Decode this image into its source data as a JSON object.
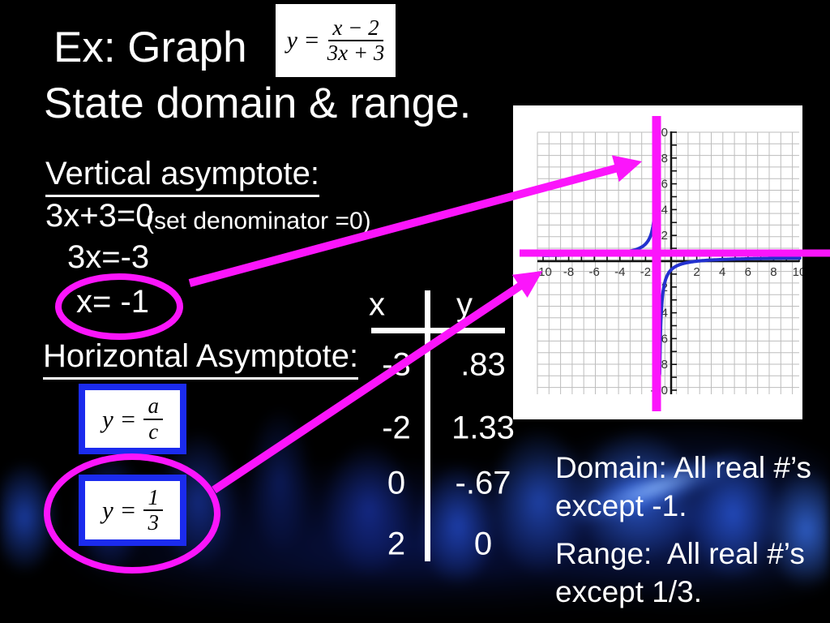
{
  "title": {
    "line1": "Ex: Graph",
    "line2": "State domain & range.",
    "formula": {
      "lhs": "y =",
      "numerator": "x − 2",
      "denominator": "3x + 3"
    }
  },
  "vertical_asymptote": {
    "heading": "Vertical asymptote:",
    "equation": "3x+3=0",
    "note": "(set denominator =0)",
    "step2": "3x=-3",
    "result": "x= -1"
  },
  "horizontal_asymptote": {
    "heading": "Horizontal Asymptote:",
    "rule_formula": {
      "lhs": "y =",
      "numerator": "a",
      "denominator": "c"
    },
    "value_formula": {
      "lhs": "y =",
      "numerator": "1",
      "denominator": "3"
    }
  },
  "table": {
    "col1_header": "x",
    "col2_header": "y",
    "rows": [
      {
        "x": "-3",
        "y": ".83"
      },
      {
        "x": "-2",
        "y": "1.33"
      },
      {
        "x": "0",
        "y": "-.67"
      },
      {
        "x": "2",
        "y": "0"
      }
    ]
  },
  "answers": {
    "domain": "Domain: All real #’s except -1.",
    "range": "Range:  All real #’s except 1/3."
  },
  "chart_data": {
    "type": "line",
    "title": "",
    "function": "y = (x-2)/(3x+3)",
    "x_range": [
      -10,
      10
    ],
    "y_range": [
      -10,
      10
    ],
    "x_tick_labels": [
      "-10",
      "-8",
      "-6",
      "-4",
      "-2",
      "2",
      "4",
      "6",
      "8",
      "10"
    ],
    "y_tick_labels": [
      "10",
      "8",
      "6",
      "4",
      "2",
      "-2",
      "-4",
      "-6",
      "-8",
      "-10"
    ],
    "numerator_coeffs": [
      1,
      -2
    ],
    "denominator_coeffs": [
      3,
      3
    ],
    "vertical_asymptote_x": -1,
    "horizontal_asymptote_y": 0.333,
    "grid": true,
    "curve_color": "#2331cf",
    "asymptote_color": "#fb15fb",
    "sample_points": [
      {
        "x": -3,
        "y": 0.83
      },
      {
        "x": -2,
        "y": 1.33
      },
      {
        "x": 0,
        "y": -0.67
      },
      {
        "x": 2,
        "y": 0
      }
    ]
  },
  "colors": {
    "accent": "#fb15fb",
    "formula_border": "#1b2bee",
    "curve": "#2331cf",
    "slide_bg": "#000000",
    "text": "#ffffff"
  }
}
